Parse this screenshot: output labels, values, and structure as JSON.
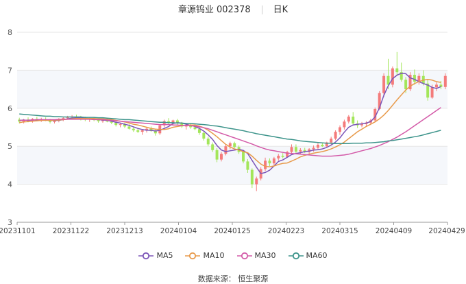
{
  "header": {
    "name_code": "章源钨业 002378",
    "period": "日K"
  },
  "source_text": "数据来源： 恒生聚源",
  "colors": {
    "up": "#f47b7b",
    "down": "#a3e65a",
    "ma5": "#7b55b8",
    "ma10": "#e89a4a",
    "ma30": "#d35aa8",
    "ma60": "#3d948b"
  },
  "chart_data": {
    "type": "candlestick",
    "title": "章源钨业 002378",
    "ylim": [
      3,
      8
    ],
    "yticks": [
      3,
      4,
      5,
      6,
      7,
      8
    ],
    "x_tick_labels": [
      "20231101",
      "20231122",
      "20231213",
      "20240104",
      "20240125",
      "20240223",
      "20240315",
      "20240409",
      "20240429"
    ],
    "legend_placement": "bottom-center",
    "series": [
      {
        "name": "MA5",
        "key": "ma5"
      },
      {
        "name": "MA10",
        "key": "ma10"
      },
      {
        "name": "MA30",
        "key": "ma30"
      },
      {
        "name": "MA60",
        "key": "ma60"
      }
    ],
    "candles": [
      {
        "o": 5.7,
        "h": 5.75,
        "l": 5.6,
        "c": 5.65
      },
      {
        "o": 5.65,
        "h": 5.72,
        "l": 5.6,
        "c": 5.7
      },
      {
        "o": 5.7,
        "h": 5.76,
        "l": 5.63,
        "c": 5.66
      },
      {
        "o": 5.66,
        "h": 5.74,
        "l": 5.62,
        "c": 5.72
      },
      {
        "o": 5.72,
        "h": 5.78,
        "l": 5.66,
        "c": 5.69
      },
      {
        "o": 5.69,
        "h": 5.75,
        "l": 5.64,
        "c": 5.71
      },
      {
        "o": 5.71,
        "h": 5.76,
        "l": 5.66,
        "c": 5.68
      },
      {
        "o": 5.68,
        "h": 5.72,
        "l": 5.6,
        "c": 5.64
      },
      {
        "o": 5.64,
        "h": 5.7,
        "l": 5.6,
        "c": 5.68
      },
      {
        "o": 5.68,
        "h": 5.74,
        "l": 5.63,
        "c": 5.7
      },
      {
        "o": 5.7,
        "h": 5.78,
        "l": 5.66,
        "c": 5.74
      },
      {
        "o": 5.74,
        "h": 5.8,
        "l": 5.7,
        "c": 5.76
      },
      {
        "o": 5.76,
        "h": 5.82,
        "l": 5.72,
        "c": 5.78
      },
      {
        "o": 5.78,
        "h": 5.83,
        "l": 5.72,
        "c": 5.75
      },
      {
        "o": 5.75,
        "h": 5.8,
        "l": 5.68,
        "c": 5.72
      },
      {
        "o": 5.72,
        "h": 5.78,
        "l": 5.66,
        "c": 5.7
      },
      {
        "o": 5.7,
        "h": 5.76,
        "l": 5.64,
        "c": 5.73
      },
      {
        "o": 5.73,
        "h": 5.77,
        "l": 5.66,
        "c": 5.69
      },
      {
        "o": 5.69,
        "h": 5.72,
        "l": 5.62,
        "c": 5.66
      },
      {
        "o": 5.66,
        "h": 5.72,
        "l": 5.62,
        "c": 5.7
      },
      {
        "o": 5.7,
        "h": 5.74,
        "l": 5.63,
        "c": 5.65
      },
      {
        "o": 5.65,
        "h": 5.7,
        "l": 5.58,
        "c": 5.62
      },
      {
        "o": 5.62,
        "h": 5.66,
        "l": 5.52,
        "c": 5.56
      },
      {
        "o": 5.56,
        "h": 5.62,
        "l": 5.5,
        "c": 5.58
      },
      {
        "o": 5.58,
        "h": 5.62,
        "l": 5.48,
        "c": 5.52
      },
      {
        "o": 5.52,
        "h": 5.58,
        "l": 5.44,
        "c": 5.46
      },
      {
        "o": 5.46,
        "h": 5.52,
        "l": 5.38,
        "c": 5.42
      },
      {
        "o": 5.42,
        "h": 5.48,
        "l": 5.35,
        "c": 5.38
      },
      {
        "o": 5.38,
        "h": 5.45,
        "l": 5.3,
        "c": 5.42
      },
      {
        "o": 5.42,
        "h": 5.5,
        "l": 5.36,
        "c": 5.46
      },
      {
        "o": 5.46,
        "h": 5.52,
        "l": 5.38,
        "c": 5.4
      },
      {
        "o": 5.4,
        "h": 5.46,
        "l": 5.28,
        "c": 5.34
      },
      {
        "o": 5.34,
        "h": 5.58,
        "l": 5.3,
        "c": 5.55
      },
      {
        "o": 5.55,
        "h": 5.7,
        "l": 5.5,
        "c": 5.66
      },
      {
        "o": 5.66,
        "h": 5.74,
        "l": 5.58,
        "c": 5.62
      },
      {
        "o": 5.62,
        "h": 5.7,
        "l": 5.55,
        "c": 5.68
      },
      {
        "o": 5.68,
        "h": 5.72,
        "l": 5.56,
        "c": 5.6
      },
      {
        "o": 5.6,
        "h": 5.64,
        "l": 5.48,
        "c": 5.52
      },
      {
        "o": 5.52,
        "h": 5.58,
        "l": 5.44,
        "c": 5.54
      },
      {
        "o": 5.54,
        "h": 5.6,
        "l": 5.46,
        "c": 5.5
      },
      {
        "o": 5.5,
        "h": 5.56,
        "l": 5.42,
        "c": 5.45
      },
      {
        "o": 5.45,
        "h": 5.5,
        "l": 5.3,
        "c": 5.35
      },
      {
        "o": 5.35,
        "h": 5.4,
        "l": 5.15,
        "c": 5.2
      },
      {
        "o": 5.2,
        "h": 5.25,
        "l": 5.0,
        "c": 5.05
      },
      {
        "o": 5.05,
        "h": 5.1,
        "l": 4.85,
        "c": 4.9
      },
      {
        "o": 4.9,
        "h": 4.95,
        "l": 4.58,
        "c": 4.65
      },
      {
        "o": 4.65,
        "h": 4.85,
        "l": 4.6,
        "c": 4.8
      },
      {
        "o": 4.8,
        "h": 5.05,
        "l": 4.76,
        "c": 5.0
      },
      {
        "o": 5.0,
        "h": 5.12,
        "l": 4.92,
        "c": 5.08
      },
      {
        "o": 5.08,
        "h": 5.12,
        "l": 4.95,
        "c": 4.98
      },
      {
        "o": 4.98,
        "h": 5.02,
        "l": 4.8,
        "c": 4.85
      },
      {
        "o": 4.85,
        "h": 4.9,
        "l": 4.55,
        "c": 4.6
      },
      {
        "o": 4.6,
        "h": 4.66,
        "l": 4.3,
        "c": 4.38
      },
      {
        "o": 4.38,
        "h": 4.42,
        "l": 3.9,
        "c": 4.0
      },
      {
        "o": 4.0,
        "h": 4.2,
        "l": 3.82,
        "c": 4.15
      },
      {
        "o": 4.15,
        "h": 4.45,
        "l": 4.1,
        "c": 4.4
      },
      {
        "o": 4.4,
        "h": 4.7,
        "l": 4.35,
        "c": 4.62
      },
      {
        "o": 4.62,
        "h": 4.68,
        "l": 4.48,
        "c": 4.55
      },
      {
        "o": 4.55,
        "h": 4.72,
        "l": 4.5,
        "c": 4.68
      },
      {
        "o": 4.68,
        "h": 4.8,
        "l": 4.62,
        "c": 4.75
      },
      {
        "o": 4.75,
        "h": 4.82,
        "l": 4.68,
        "c": 4.72
      },
      {
        "o": 4.72,
        "h": 4.88,
        "l": 4.7,
        "c": 4.85
      },
      {
        "o": 4.85,
        "h": 5.05,
        "l": 4.8,
        "c": 4.98
      },
      {
        "o": 4.98,
        "h": 5.05,
        "l": 4.82,
        "c": 4.86
      },
      {
        "o": 4.86,
        "h": 4.95,
        "l": 4.8,
        "c": 4.9
      },
      {
        "o": 4.9,
        "h": 4.96,
        "l": 4.82,
        "c": 4.85
      },
      {
        "o": 4.85,
        "h": 4.95,
        "l": 4.8,
        "c": 4.92
      },
      {
        "o": 4.92,
        "h": 5.02,
        "l": 4.86,
        "c": 4.96
      },
      {
        "o": 4.96,
        "h": 5.08,
        "l": 4.92,
        "c": 5.04
      },
      {
        "o": 5.04,
        "h": 5.1,
        "l": 4.98,
        "c": 5.0
      },
      {
        "o": 5.0,
        "h": 5.12,
        "l": 4.96,
        "c": 5.1
      },
      {
        "o": 5.1,
        "h": 5.25,
        "l": 5.05,
        "c": 5.2
      },
      {
        "o": 5.2,
        "h": 5.42,
        "l": 5.16,
        "c": 5.38
      },
      {
        "o": 5.38,
        "h": 5.55,
        "l": 5.3,
        "c": 5.5
      },
      {
        "o": 5.5,
        "h": 5.7,
        "l": 5.44,
        "c": 5.65
      },
      {
        "o": 5.65,
        "h": 5.82,
        "l": 5.6,
        "c": 5.78
      },
      {
        "o": 5.78,
        "h": 5.9,
        "l": 5.55,
        "c": 5.6
      },
      {
        "o": 5.6,
        "h": 5.68,
        "l": 5.48,
        "c": 5.55
      },
      {
        "o": 5.55,
        "h": 5.64,
        "l": 5.5,
        "c": 5.58
      },
      {
        "o": 5.58,
        "h": 5.66,
        "l": 5.52,
        "c": 5.62
      },
      {
        "o": 5.62,
        "h": 5.72,
        "l": 5.56,
        "c": 5.68
      },
      {
        "o": 5.68,
        "h": 6.02,
        "l": 5.65,
        "c": 5.98
      },
      {
        "o": 5.98,
        "h": 6.45,
        "l": 5.95,
        "c": 6.4
      },
      {
        "o": 6.4,
        "h": 6.92,
        "l": 6.3,
        "c": 6.85
      },
      {
        "o": 6.85,
        "h": 7.3,
        "l": 6.5,
        "c": 6.62
      },
      {
        "o": 6.62,
        "h": 7.1,
        "l": 6.55,
        "c": 7.05
      },
      {
        "o": 7.05,
        "h": 7.48,
        "l": 6.85,
        "c": 6.95
      },
      {
        "o": 6.95,
        "h": 7.2,
        "l": 6.7,
        "c": 6.75
      },
      {
        "o": 6.75,
        "h": 6.82,
        "l": 6.4,
        "c": 6.5
      },
      {
        "o": 6.5,
        "h": 6.95,
        "l": 6.45,
        "c": 6.88
      },
      {
        "o": 6.88,
        "h": 7.02,
        "l": 6.62,
        "c": 6.7
      },
      {
        "o": 6.7,
        "h": 6.92,
        "l": 6.62,
        "c": 6.85
      },
      {
        "o": 6.85,
        "h": 7.0,
        "l": 6.6,
        "c": 6.65
      },
      {
        "o": 6.65,
        "h": 6.75,
        "l": 6.2,
        "c": 6.28
      },
      {
        "o": 6.28,
        "h": 6.62,
        "l": 6.25,
        "c": 6.55
      },
      {
        "o": 6.55,
        "h": 6.68,
        "l": 6.45,
        "c": 6.62
      },
      {
        "o": 6.62,
        "h": 6.72,
        "l": 6.5,
        "c": 6.56
      },
      {
        "o": 6.56,
        "h": 6.92,
        "l": 6.5,
        "c": 6.85
      }
    ],
    "ma5": [
      5.68,
      5.69,
      5.68,
      5.69,
      5.69,
      5.7,
      5.69,
      5.68,
      5.68,
      5.68,
      5.7,
      5.72,
      5.74,
      5.75,
      5.75,
      5.74,
      5.73,
      5.71,
      5.7,
      5.69,
      5.68,
      5.66,
      5.63,
      5.61,
      5.58,
      5.55,
      5.51,
      5.47,
      5.44,
      5.42,
      5.42,
      5.4,
      5.42,
      5.47,
      5.52,
      5.6,
      5.62,
      5.61,
      5.58,
      5.55,
      5.52,
      5.47,
      5.4,
      5.3,
      5.18,
      5.02,
      4.9,
      4.86,
      4.88,
      4.9,
      4.92,
      4.89,
      4.81,
      4.63,
      4.45,
      4.28,
      4.31,
      4.37,
      4.48,
      4.6,
      4.64,
      4.71,
      4.78,
      4.81,
      4.83,
      4.86,
      4.87,
      4.9,
      4.91,
      4.93,
      4.97,
      5.03,
      5.11,
      5.22,
      5.37,
      5.5,
      5.56,
      5.58,
      5.59,
      5.61,
      5.65,
      5.77,
      6.01,
      6.34,
      6.59,
      6.78,
      6.87,
      6.92,
      6.91,
      6.8,
      6.76,
      6.7,
      6.65,
      6.61,
      6.55,
      6.52,
      6.57
    ],
    "ma10": [
      5.62,
      5.64,
      5.65,
      5.66,
      5.67,
      5.68,
      5.68,
      5.68,
      5.69,
      5.69,
      5.7,
      5.71,
      5.72,
      5.73,
      5.73,
      5.73,
      5.73,
      5.73,
      5.72,
      5.72,
      5.71,
      5.7,
      5.68,
      5.66,
      5.64,
      5.61,
      5.58,
      5.56,
      5.53,
      5.5,
      5.47,
      5.45,
      5.44,
      5.44,
      5.46,
      5.5,
      5.52,
      5.54,
      5.55,
      5.56,
      5.56,
      5.53,
      5.49,
      5.42,
      5.34,
      5.25,
      5.15,
      5.05,
      4.98,
      4.93,
      4.9,
      4.86,
      4.83,
      4.74,
      4.63,
      4.53,
      4.47,
      4.46,
      4.48,
      4.52,
      4.55,
      4.56,
      4.61,
      4.66,
      4.72,
      4.76,
      4.79,
      4.82,
      4.84,
      4.86,
      4.89,
      4.93,
      4.98,
      5.04,
      5.11,
      5.2,
      5.29,
      5.38,
      5.45,
      5.52,
      5.58,
      5.64,
      5.72,
      5.82,
      5.94,
      6.08,
      6.22,
      6.35,
      6.48,
      6.58,
      6.65,
      6.7,
      6.74,
      6.76,
      6.74,
      6.7,
      6.68
    ],
    "ma30": [
      5.68,
      5.68,
      5.69,
      5.69,
      5.7,
      5.7,
      5.7,
      5.7,
      5.7,
      5.71,
      5.71,
      5.71,
      5.71,
      5.71,
      5.71,
      5.71,
      5.71,
      5.7,
      5.7,
      5.7,
      5.69,
      5.68,
      5.67,
      5.66,
      5.65,
      5.64,
      5.63,
      5.62,
      5.61,
      5.6,
      5.59,
      5.58,
      5.57,
      5.57,
      5.57,
      5.56,
      5.56,
      5.55,
      5.55,
      5.54,
      5.53,
      5.51,
      5.49,
      5.46,
      5.42,
      5.38,
      5.34,
      5.3,
      5.26,
      5.22,
      5.18,
      5.14,
      5.1,
      5.06,
      5.01,
      4.97,
      4.93,
      4.9,
      4.88,
      4.86,
      4.84,
      4.82,
      4.81,
      4.8,
      4.79,
      4.78,
      4.77,
      4.76,
      4.75,
      4.74,
      4.74,
      4.74,
      4.75,
      4.76,
      4.77,
      4.79,
      4.82,
      4.85,
      4.88,
      4.91,
      4.94,
      4.98,
      5.02,
      5.07,
      5.12,
      5.18,
      5.24,
      5.31,
      5.38,
      5.46,
      5.54,
      5.62,
      5.7,
      5.78,
      5.86,
      5.94,
      6.02
    ],
    "ma60": [
      5.85,
      5.84,
      5.83,
      5.82,
      5.81,
      5.8,
      5.79,
      5.79,
      5.78,
      5.78,
      5.77,
      5.77,
      5.77,
      5.77,
      5.77,
      5.76,
      5.76,
      5.76,
      5.75,
      5.75,
      5.74,
      5.73,
      5.72,
      5.71,
      5.7,
      5.7,
      5.69,
      5.68,
      5.67,
      5.66,
      5.65,
      5.64,
      5.63,
      5.63,
      5.62,
      5.62,
      5.61,
      5.61,
      5.6,
      5.6,
      5.59,
      5.58,
      5.57,
      5.56,
      5.54,
      5.53,
      5.51,
      5.49,
      5.47,
      5.45,
      5.43,
      5.41,
      5.38,
      5.36,
      5.33,
      5.31,
      5.29,
      5.27,
      5.25,
      5.23,
      5.21,
      5.19,
      5.18,
      5.16,
      5.14,
      5.13,
      5.12,
      5.11,
      5.1,
      5.09,
      5.08,
      5.08,
      5.07,
      5.07,
      5.07,
      5.07,
      5.08,
      5.08,
      5.08,
      5.09,
      5.09,
      5.1,
      5.11,
      5.12,
      5.14,
      5.15,
      5.17,
      5.19,
      5.21,
      5.23,
      5.25,
      5.27,
      5.3,
      5.33,
      5.36,
      5.39,
      5.42
    ]
  }
}
